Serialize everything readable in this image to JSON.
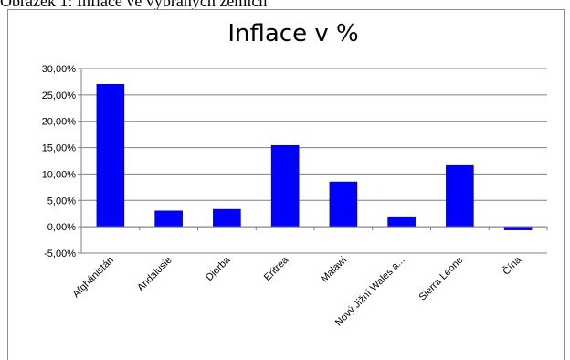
{
  "caption": "Obrázek 1: Inflace ve vybraných zemích",
  "chart_data": {
    "type": "bar",
    "title": "Inflace v %",
    "xlabel": "",
    "ylabel": "",
    "categories": [
      "Afghánistán",
      "Andalusie",
      "Djerba",
      "Eritrea",
      "Malawi",
      "Nový Jižní Wales a...",
      "Sierra Leone",
      "Čína"
    ],
    "series": [
      {
        "values": [
          27.0,
          3.0,
          3.3,
          15.4,
          8.5,
          1.9,
          11.6,
          -0.6
        ]
      }
    ],
    "ylim": [
      -5,
      30
    ],
    "yticks": [
      30,
      25,
      20,
      15,
      10,
      5,
      0,
      -5
    ],
    "ytick_labels": [
      "30,00%",
      "25,00%",
      "20,00%",
      "15,00%",
      "10,00%",
      "5,00%",
      "0,00%",
      "-5,00%"
    ],
    "grid": true,
    "legend": "none",
    "colors": {
      "bar": "#0000ff",
      "bar_stroke": "#00008b",
      "grid": "#808080",
      "axis": "#808080"
    }
  }
}
